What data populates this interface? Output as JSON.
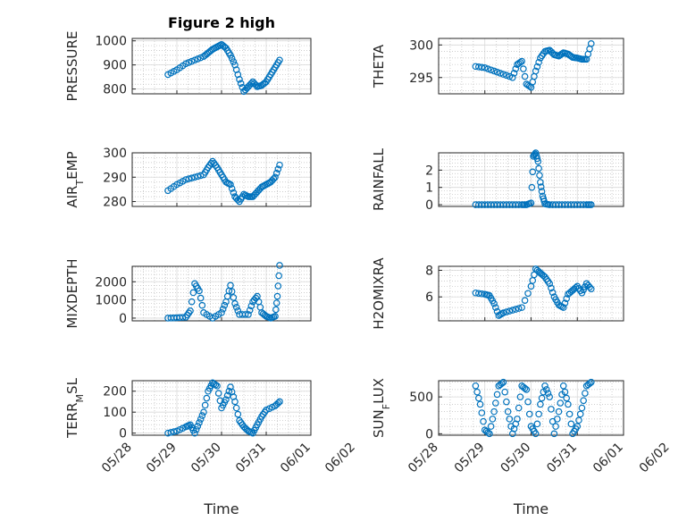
{
  "figure": {
    "title": "Figure 2 high"
  },
  "x_axis_common": {
    "label": "Time",
    "ticks": [
      "05/28",
      "05/29",
      "05/30",
      "05/31",
      "06/01",
      "06/02"
    ]
  },
  "colors": {
    "marker": "#0072BD",
    "axis": "#262626",
    "grid": "#d9d9d9"
  },
  "chart_data": [
    {
      "type": "scatter",
      "panel": "top-left",
      "title": "Figure 2 high",
      "ylabel": "PRESSURE",
      "ylabel_sub": "",
      "xlim": [
        0,
        4
      ],
      "ylim": [
        780,
        1010
      ],
      "yticks": [
        800,
        900,
        1000
      ],
      "yticklabels": [
        "800",
        "900",
        "1000"
      ],
      "show_xticklabels": false,
      "x": [
        0.8,
        1.0,
        1.2,
        1.4,
        1.6,
        1.7,
        1.8,
        1.9,
        2.0,
        2.1,
        2.2,
        2.3,
        2.4,
        2.5,
        2.6,
        2.7,
        2.8,
        2.9,
        3.0,
        3.1,
        3.2,
        3.3
      ],
      "y": [
        860,
        880,
        905,
        920,
        935,
        950,
        965,
        975,
        985,
        970,
        940,
        900,
        840,
        790,
        810,
        830,
        810,
        815,
        830,
        860,
        890,
        920
      ]
    },
    {
      "type": "scatter",
      "panel": "top-right",
      "title": "",
      "ylabel": "THETA",
      "ylabel_sub": "",
      "xlim": [
        0,
        4
      ],
      "ylim": [
        292.5,
        301
      ],
      "yticks": [
        295,
        300
      ],
      "yticklabels": [
        "295",
        "300"
      ],
      "show_xticklabels": false,
      "x": [
        0.8,
        1.0,
        1.2,
        1.4,
        1.6,
        1.7,
        1.8,
        1.9,
        2.0,
        2.1,
        2.2,
        2.3,
        2.4,
        2.5,
        2.6,
        2.7,
        2.8,
        2.9,
        3.0,
        3.1,
        3.2,
        3.3
      ],
      "y": [
        296.7,
        296.5,
        296,
        295.5,
        295,
        297,
        297.5,
        294,
        293.5,
        296,
        298,
        299,
        299.2,
        298.5,
        298.3,
        298.8,
        298.6,
        298.1,
        298,
        297.8,
        297.8,
        300.2
      ]
    },
    {
      "type": "scatter",
      "panel": "second-left",
      "title": "",
      "ylabel": "AIR",
      "ylabel_sub": "T",
      "ylabel_suffix": "EMP",
      "xlim": [
        0,
        4
      ],
      "ylim": [
        278,
        300
      ],
      "yticks": [
        280,
        290,
        300
      ],
      "yticklabels": [
        "280",
        "290",
        "300"
      ],
      "show_xticklabels": false,
      "x": [
        0.8,
        1.0,
        1.2,
        1.4,
        1.6,
        1.7,
        1.8,
        1.9,
        2.0,
        2.1,
        2.2,
        2.3,
        2.4,
        2.5,
        2.6,
        2.7,
        2.8,
        2.9,
        3.0,
        3.1,
        3.2,
        3.3
      ],
      "y": [
        284.5,
        287,
        289,
        290,
        291,
        294,
        296.5,
        294,
        291,
        288,
        287,
        282,
        280,
        283,
        282,
        282,
        284,
        286,
        287,
        288,
        290,
        295
      ]
    },
    {
      "type": "scatter",
      "panel": "second-right",
      "title": "",
      "ylabel": "RAINFALL",
      "ylabel_sub": "",
      "xlim": [
        0,
        4
      ],
      "ylim": [
        -0.1,
        3.0
      ],
      "yticks": [
        0,
        1,
        2
      ],
      "yticklabels": [
        "0",
        "1",
        "2"
      ],
      "show_xticklabels": false,
      "x": [
        0.8,
        1.0,
        1.2,
        1.4,
        1.6,
        1.8,
        1.9,
        2.0,
        2.05,
        2.1,
        2.15,
        2.2,
        2.25,
        2.3,
        2.4,
        2.6,
        2.8,
        3.0,
        3.2,
        3.3
      ],
      "y": [
        0,
        0,
        0,
        0,
        0,
        0,
        0,
        0.1,
        2.8,
        3.0,
        2.5,
        1.3,
        0.5,
        0.05,
        0,
        0,
        0,
        0,
        0,
        0
      ]
    },
    {
      "type": "scatter",
      "panel": "third-left",
      "title": "",
      "ylabel": "MIXDEPTH",
      "ylabel_sub": "",
      "xlim": [
        0,
        4
      ],
      "ylim": [
        -150,
        2850
      ],
      "yticks": [
        0,
        1000,
        2000
      ],
      "yticklabels": [
        "0",
        "1000",
        "2000"
      ],
      "show_xticklabels": false,
      "x": [
        0.8,
        1.0,
        1.2,
        1.3,
        1.4,
        1.5,
        1.6,
        1.8,
        2.0,
        2.1,
        2.2,
        2.3,
        2.4,
        2.6,
        2.7,
        2.8,
        2.9,
        3.0,
        3.1,
        3.2,
        3.25,
        3.3
      ],
      "y": [
        0,
        20,
        50,
        400,
        1900,
        1500,
        300,
        0,
        300,
        900,
        1800,
        800,
        200,
        200,
        900,
        1200,
        300,
        100,
        0,
        100,
        1200,
        2900
      ]
    },
    {
      "type": "scatter",
      "panel": "third-right",
      "title": "",
      "ylabel": "H2OMIXRA",
      "ylabel_sub": "",
      "xlim": [
        0,
        4
      ],
      "ylim": [
        4.2,
        8.3
      ],
      "yticks": [
        6,
        8
      ],
      "yticklabels": [
        "6",
        "8"
      ],
      "show_xticklabels": false,
      "x": [
        0.8,
        1.0,
        1.1,
        1.2,
        1.3,
        1.4,
        1.6,
        1.8,
        2.0,
        2.1,
        2.2,
        2.3,
        2.4,
        2.5,
        2.6,
        2.7,
        2.8,
        2.9,
        3.0,
        3.1,
        3.2,
        3.3
      ],
      "y": [
        6.3,
        6.2,
        6.1,
        5.5,
        4.6,
        4.8,
        5.0,
        5.2,
        6.8,
        8.1,
        7.8,
        7.5,
        7.0,
        6.0,
        5.4,
        5.2,
        6.2,
        6.5,
        6.8,
        6.3,
        7.0,
        6.6
      ]
    },
    {
      "type": "scatter",
      "panel": "bottom-left",
      "title": "",
      "ylabel": "TERR",
      "ylabel_sub": "M",
      "ylabel_suffix": "SL",
      "xlim": [
        0,
        4
      ],
      "ylim": [
        -10,
        250
      ],
      "yticks": [
        0,
        100,
        200
      ],
      "yticklabels": [
        "0",
        "100",
        "200"
      ],
      "show_xticklabels": true,
      "x": [
        0.8,
        1.0,
        1.2,
        1.3,
        1.4,
        1.5,
        1.6,
        1.7,
        1.8,
        1.9,
        2.0,
        2.1,
        2.2,
        2.3,
        2.4,
        2.5,
        2.6,
        2.7,
        2.8,
        2.9,
        3.0,
        3.2,
        3.3
      ],
      "y": [
        0,
        10,
        30,
        40,
        0,
        50,
        100,
        200,
        240,
        225,
        120,
        160,
        220,
        150,
        60,
        30,
        10,
        0,
        40,
        80,
        110,
        130,
        150
      ]
    },
    {
      "type": "scatter",
      "panel": "bottom-right",
      "title": "",
      "ylabel": "SUN",
      "ylabel_sub": "F",
      "ylabel_suffix": "LUX",
      "xlim": [
        0,
        4
      ],
      "ylim": [
        -20,
        720
      ],
      "yticks": [
        0,
        500
      ],
      "yticklabels": [
        "0",
        "500"
      ],
      "show_xticklabels": true,
      "x": [
        0.8,
        0.9,
        1.0,
        1.1,
        1.2,
        1.3,
        1.4,
        1.5,
        1.6,
        1.7,
        1.8,
        1.9,
        2.0,
        2.1,
        2.2,
        2.3,
        2.4,
        2.5,
        2.6,
        2.7,
        2.8,
        2.9,
        3.0,
        3.1,
        3.2,
        3.3
      ],
      "y": [
        650,
        400,
        50,
        0,
        300,
        650,
        700,
        300,
        0,
        200,
        650,
        600,
        100,
        0,
        400,
        650,
        500,
        0,
        300,
        650,
        400,
        0,
        100,
        350,
        650,
        700
      ]
    }
  ]
}
